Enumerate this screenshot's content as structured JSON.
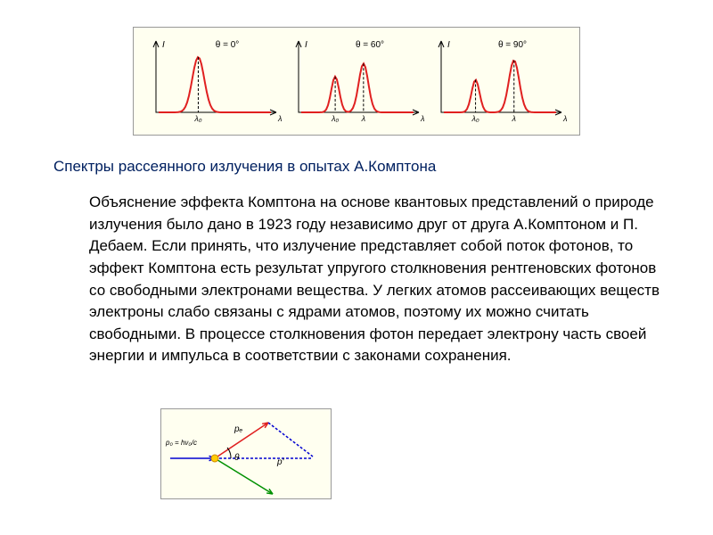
{
  "caption": "Спектры рассеянного излучения в опытах А.Комптона",
  "body": "Объяснение эффекта Комптона на основе квантовых представлений о природе излучения было дано в 1923 году независимо друг от друга А.Комптоном и П. Дебаем. Если принять, что излучение представляет собой поток фотонов, то эффект Комптона есть результат упругого столкновения рентгеновских фотонов со свободными электронами вещества. У легких атомов рассеивающих веществ электроны слабо связаны с ядрами атомов, поэтому их можно считать свободными. В процессе столкновения фотон передает электрону часть своей энергии и импульса в соответствии с законами сохранения.",
  "spectra": {
    "background_color": "#fffff0",
    "line_color": "#e02020",
    "line_width": 2,
    "axis_color": "#000000",
    "panels": [
      {
        "label": "θ = 0°",
        "peaks": [
          {
            "x": 0.35,
            "h": 0.85,
            "w": 0.15
          }
        ],
        "y_label": "I",
        "x_marks": [
          "λ₀"
        ]
      },
      {
        "label": "θ = 60°",
        "peaks": [
          {
            "x": 0.3,
            "h": 0.55,
            "w": 0.1
          },
          {
            "x": 0.55,
            "h": 0.75,
            "w": 0.12
          }
        ],
        "y_label": "I",
        "x_marks": [
          "λ₀",
          "λ"
        ]
      },
      {
        "label": "θ = 90°",
        "peaks": [
          {
            "x": 0.28,
            "h": 0.5,
            "w": 0.1
          },
          {
            "x": 0.62,
            "h": 0.8,
            "w": 0.13
          }
        ],
        "y_label": "I",
        "x_marks": [
          "λ₀",
          "λ"
        ]
      }
    ]
  },
  "momentum_diagram": {
    "background_color": "#fffff0",
    "colors": {
      "incident": "#0000d0",
      "scattered_dash": "#0000d0",
      "electron": "#009000",
      "photon_out": "#e02020",
      "photon_arrow": "#e02020"
    },
    "labels": {
      "p0": "p₀",
      "pout": "p'",
      "pe": "pₑ",
      "theta": "θ"
    },
    "p0_formula": "p₀ = hν₀/c"
  },
  "text_color": "#000000",
  "caption_color": "#002060",
  "fontsize_body": 17,
  "fontsize_caption": 17
}
